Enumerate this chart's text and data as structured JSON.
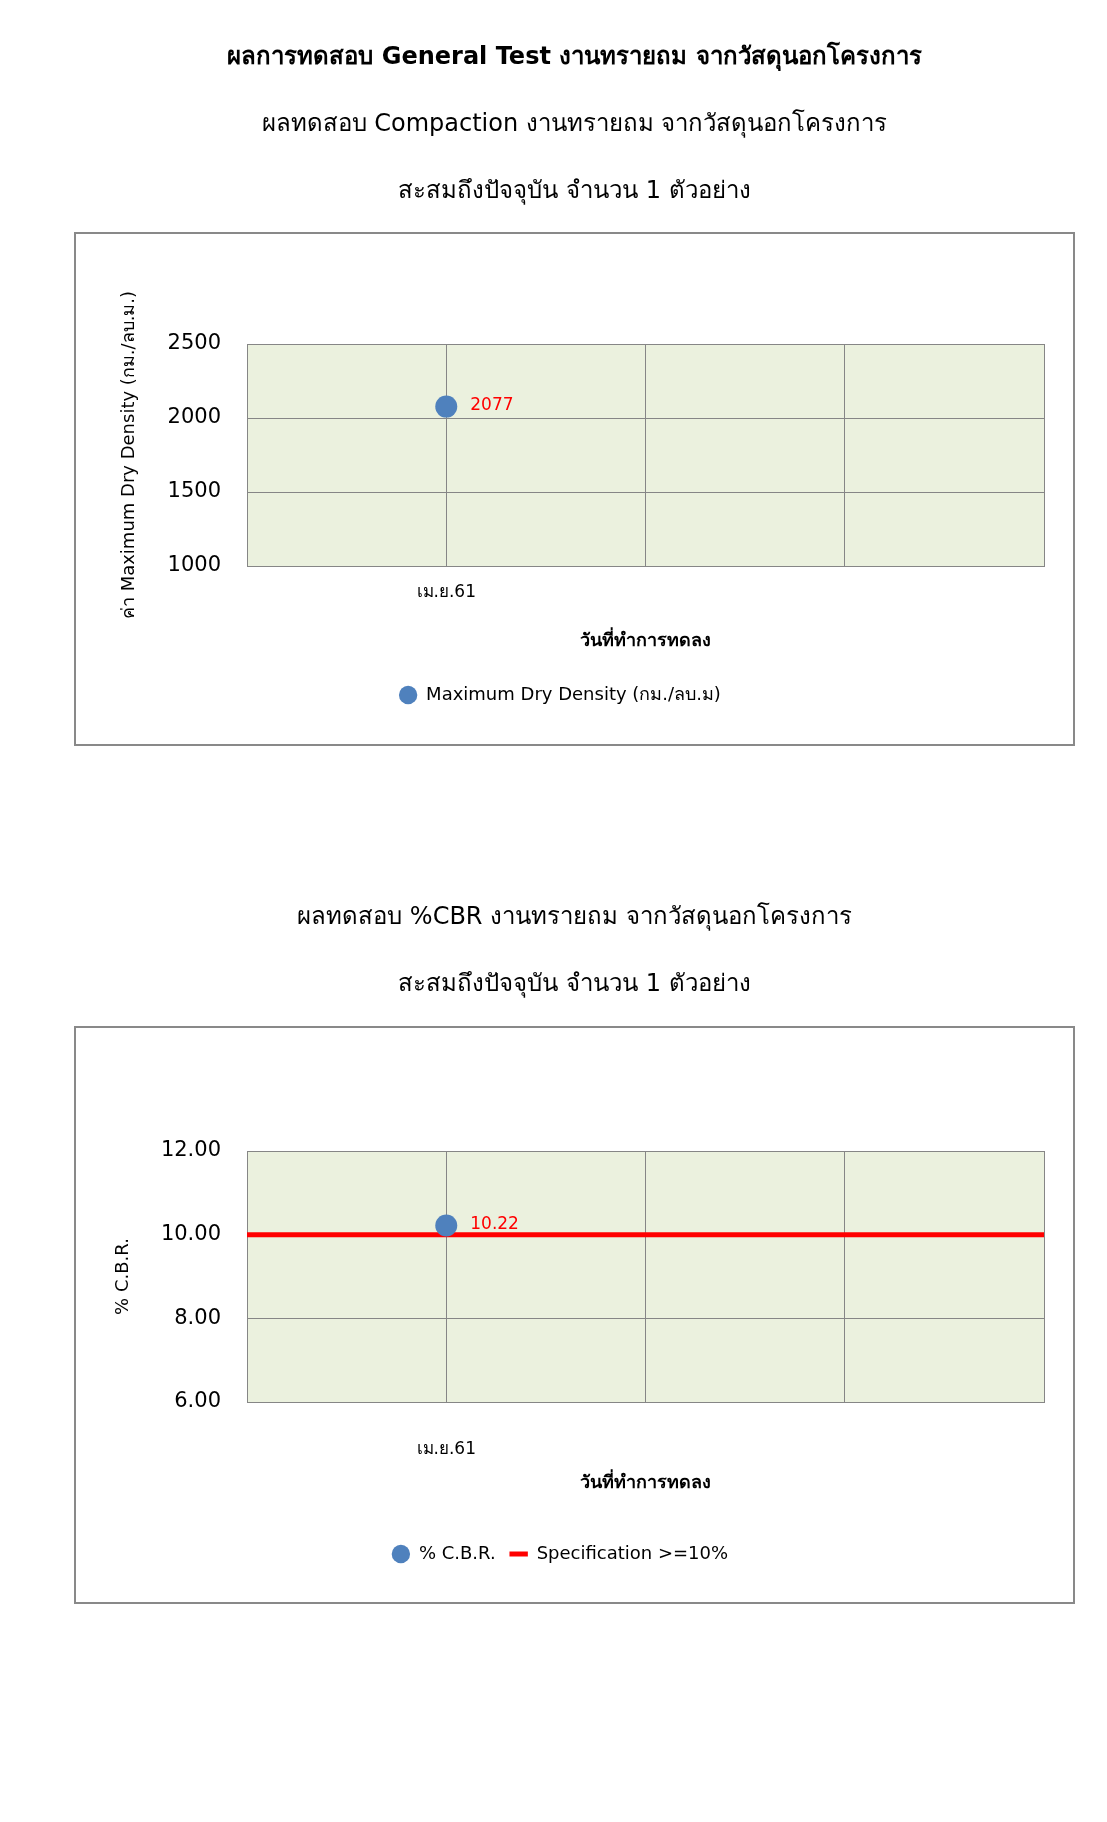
{
  "chart_data": [
    {
      "type": "scatter",
      "title": "ผลการทดสอบ General Test งานทรายถม จากวัสดุนอกโครงการ",
      "subtitle": "ผลทดสอบ Compaction งานทรายถม จากวัสดุนอกโครงการ",
      "annotations": [
        "สะสมถึงปัจจุบัน จำนวน 1 ตัวอย่าง"
      ],
      "xlabel": "วันที่ทำการทดลง",
      "ylabel": "ค่า Maximum Dry Density (กม./ลบ.ม.)",
      "categories": [
        null,
        "เม.ย.61",
        null,
        null,
        null
      ],
      "series": [
        {
          "name": "Maximum Dry Density (กม./ลบ.ม)",
          "color": "#4f81bd",
          "values": [
            null,
            2077,
            null,
            null,
            null
          ]
        }
      ],
      "ylim": [
        1000,
        2500
      ],
      "yticks": [
        1000,
        1500,
        2000,
        2500
      ],
      "grid": true,
      "legend": "bottom",
      "marker": "circle",
      "data_labels": true
    },
    {
      "type": "scatter",
      "title": "ผลทดสอบ %CBR งานทรายถม จากวัสดุนอกโครงการ",
      "subtitle": "สะสมถึงปัจจุบัน จำนวน 1 ตัวอย่าง",
      "xlabel": "วันที่ทำการทดลง",
      "ylabel": "% C.B.R.",
      "categories": [
        null,
        "เม.ย.61",
        null,
        null,
        null
      ],
      "series": [
        {
          "name": "% C.B.R.",
          "color": "#4f81bd",
          "values": [
            null,
            10.22,
            null,
            null,
            null
          ]
        }
      ],
      "ylim": [
        6,
        12
      ],
      "yticks": [
        {
          "value": 6,
          "label": "6.00"
        },
        {
          "value": 8,
          "label": "8.00"
        },
        {
          "value": 10,
          "label": "10.00"
        },
        {
          "value": 12,
          "label": "12.00"
        }
      ],
      "ref_lines": [
        {
          "axis": "y",
          "value": 10,
          "label": "Specification >=10%",
          "color": "#ff0000"
        }
      ],
      "grid": true,
      "legend": "bottom",
      "marker": "circle",
      "data_labels": true
    }
  ]
}
